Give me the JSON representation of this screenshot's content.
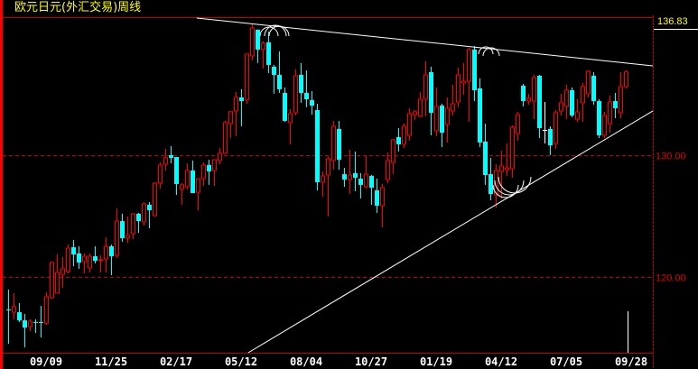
{
  "title": "欧元日元(外汇交易)周线",
  "last_price_label": "136.83",
  "colors": {
    "up": "#ff0000",
    "down": "#00ffff",
    "doji": "#ffffff",
    "grid": "#c00000",
    "title": "#ffff00",
    "trendline": "#ffffff",
    "axis_text": "#ffffff"
  },
  "chart_data": {
    "type": "candlestick",
    "title": "欧元日元(外汇交易)周线",
    "ylim": [
      113.78,
      141.33
    ],
    "y_ticks": [
      {
        "value": 130,
        "label": "130.00"
      },
      {
        "value": 120,
        "label": "120.00"
      }
    ],
    "grid": "horizontal dashed at y ticks",
    "x_ticks": [
      {
        "index": 7,
        "label": "09/09"
      },
      {
        "index": 19,
        "label": "11/25"
      },
      {
        "index": 31,
        "label": "02/17"
      },
      {
        "index": 43,
        "label": "05/12"
      },
      {
        "index": 55,
        "label": "08/04"
      },
      {
        "index": 67,
        "label": "10/27"
      },
      {
        "index": 79,
        "label": "01/19"
      },
      {
        "index": 91,
        "label": "04/12"
      },
      {
        "index": 103,
        "label": "07/05"
      },
      {
        "index": 115,
        "label": "09/28"
      }
    ],
    "last_price": 136.83,
    "ohlc": [
      [
        117.33,
        118.96,
        114.52,
        117.32
      ],
      [
        117.11,
        118.67,
        116.52,
        117.56
      ],
      [
        117.11,
        117.85,
        116.3,
        116.44
      ],
      [
        116.44,
        116.96,
        114.22,
        115.85
      ],
      [
        115.93,
        116.52,
        115.56,
        116.37
      ],
      [
        116.3,
        116.52,
        115.41,
        116.29
      ],
      [
        116.3,
        117.63,
        115.04,
        116.29
      ],
      [
        116.22,
        118.74,
        116.07,
        118.37
      ],
      [
        118.3,
        121.26,
        118.22,
        121.19
      ],
      [
        118.67,
        121.85,
        118.67,
        120.37
      ],
      [
        120.22,
        121.63,
        119.11,
        120.67
      ],
      [
        120.44,
        122.67,
        120.3,
        122.37
      ],
      [
        122.44,
        123.04,
        120.89,
        121.85
      ],
      [
        121.93,
        122.52,
        120.67,
        121.19
      ],
      [
        121.26,
        121.93,
        120.3,
        121.7
      ],
      [
        120.74,
        121.93,
        120.37,
        121.7
      ],
      [
        121.7,
        122.52,
        121.11,
        121.33
      ],
      [
        121.41,
        121.78,
        120.37,
        121.42
      ],
      [
        121.48,
        123.26,
        120.37,
        122.52
      ],
      [
        122.52,
        122.67,
        120.15,
        121.7
      ],
      [
        121.78,
        125.63,
        121.56,
        124.59
      ],
      [
        124.59,
        125.19,
        122.89,
        123.19
      ],
      [
        123.19,
        124.96,
        122.81,
        123.41
      ],
      [
        123.56,
        124.96,
        123.11,
        125.19
      ],
      [
        125.19,
        125.26,
        123.63,
        124.59
      ],
      [
        124.52,
        126.15,
        124.22,
        126.0
      ],
      [
        125.93,
        126.15,
        124.0,
        125.48
      ],
      [
        125.04,
        127.78,
        124.96,
        127.7
      ],
      [
        127.7,
        129.41,
        127.26,
        129.19
      ],
      [
        129.26,
        130.52,
        128.74,
        129.78
      ],
      [
        130.0,
        130.74,
        129.33,
        129.78
      ],
      [
        129.85,
        129.85,
        126.74,
        127.63
      ],
      [
        127.19,
        127.7,
        125.93,
        127.56
      ],
      [
        127.41,
        129.33,
        127.19,
        128.74
      ],
      [
        128.74,
        129.56,
        126.89,
        126.89
      ],
      [
        126.96,
        128.07,
        125.48,
        128.07
      ],
      [
        128.07,
        129.41,
        127.48,
        129.19
      ],
      [
        129.19,
        129.63,
        127.56,
        128.67
      ],
      [
        128.74,
        129.63,
        127.48,
        129.63
      ],
      [
        129.56,
        130.59,
        129.26,
        130.15
      ],
      [
        130.15,
        132.81,
        130.07,
        132.67
      ],
      [
        132.59,
        133.63,
        131.41,
        133.56
      ],
      [
        133.63,
        135.19,
        131.56,
        134.74
      ],
      [
        134.74,
        135.41,
        132.37,
        134.44
      ],
      [
        134.52,
        138.3,
        134.22,
        138.3
      ],
      [
        138.15,
        140.74,
        137.78,
        140.44
      ],
      [
        140.3,
        140.3,
        137.56,
        138.67
      ],
      [
        138.67,
        139.33,
        137.11,
        139.19
      ],
      [
        139.26,
        140.15,
        136.74,
        137.41
      ],
      [
        137.26,
        137.41,
        135.04,
        136.59
      ],
      [
        136.59,
        138.52,
        135.11,
        135.41
      ],
      [
        135.11,
        135.56,
        132.74,
        132.81
      ],
      [
        132.67,
        133.78,
        130.89,
        133.41
      ],
      [
        133.48,
        137.04,
        133.26,
        136.52
      ],
      [
        136.59,
        137.56,
        134.3,
        135.11
      ],
      [
        135.11,
        136.96,
        133.93,
        134.59
      ],
      [
        134.52,
        135.26,
        133.33,
        134.07
      ],
      [
        133.7,
        134.22,
        127.11,
        127.78
      ],
      [
        127.78,
        128.67,
        126.59,
        128.3
      ],
      [
        128.37,
        129.85,
        124.96,
        129.7
      ],
      [
        129.56,
        132.81,
        128.81,
        132.37
      ],
      [
        132.15,
        132.81,
        128.81,
        129.63
      ],
      [
        128.44,
        128.96,
        127.41,
        128.0
      ],
      [
        128.0,
        130.44,
        126.81,
        128.37
      ],
      [
        128.52,
        130.3,
        127.04,
        128.15
      ],
      [
        128.07,
        128.52,
        126.44,
        127.56
      ],
      [
        127.41,
        130.0,
        127.26,
        128.44
      ],
      [
        128.3,
        128.37,
        125.93,
        127.33
      ],
      [
        127.11,
        128.07,
        125.26,
        125.85
      ],
      [
        125.85,
        127.63,
        124.07,
        127.33
      ],
      [
        128.0,
        130.22,
        127.7,
        129.56
      ],
      [
        129.41,
        131.33,
        128.44,
        131.26
      ],
      [
        131.48,
        132.22,
        130.3,
        130.89
      ],
      [
        130.89,
        132.59,
        130.59,
        132.37
      ],
      [
        131.63,
        133.85,
        131.19,
        133.41
      ],
      [
        133.33,
        133.7,
        132.89,
        133.56
      ],
      [
        133.19,
        135.19,
        133.11,
        134.59
      ],
      [
        134.59,
        137.7,
        133.19,
        136.59
      ],
      [
        136.81,
        137.26,
        131.63,
        133.48
      ],
      [
        132.0,
        135.56,
        131.56,
        134.0
      ],
      [
        134.07,
        134.22,
        130.67,
        131.85
      ],
      [
        132.52,
        134.74,
        131.04,
        133.85
      ],
      [
        133.63,
        135.78,
        133.26,
        134.22
      ],
      [
        134.37,
        137.19,
        133.93,
        136.59
      ],
      [
        135.93,
        137.56,
        134.96,
        136.07
      ],
      [
        136.07,
        138.81,
        132.74,
        138.67
      ],
      [
        138.67,
        138.96,
        134.44,
        135.33
      ],
      [
        135.48,
        136.3,
        130.67,
        131.04
      ],
      [
        131.11,
        132.59,
        127.56,
        128.37
      ],
      [
        128.44,
        129.78,
        126.3,
        126.81
      ],
      [
        126.74,
        129.26,
        125.7,
        128.74
      ],
      [
        128.67,
        130.37,
        126.44,
        129.11
      ],
      [
        128.81,
        130.96,
        128.3,
        128.96
      ],
      [
        128.89,
        132.44,
        128.15,
        132.3
      ],
      [
        131.78,
        133.56,
        131.19,
        133.33
      ],
      [
        135.7,
        135.85,
        134.0,
        134.44
      ],
      [
        134.44,
        135.04,
        134.15,
        134.67
      ],
      [
        134.44,
        136.59,
        132.96,
        136.37
      ],
      [
        136.52,
        136.59,
        131.41,
        132.22
      ],
      [
        132.07,
        134.37,
        130.96,
        132.07
      ],
      [
        132.15,
        132.37,
        130.0,
        130.81
      ],
      [
        130.96,
        133.7,
        130.52,
        133.48
      ],
      [
        133.63,
        135.04,
        133.26,
        134.3
      ],
      [
        134.0,
        135.78,
        132.96,
        135.33
      ],
      [
        135.33,
        135.56,
        133.11,
        133.26
      ],
      [
        132.96,
        134.59,
        132.74,
        133.56
      ],
      [
        134.3,
        135.93,
        132.74,
        135.63
      ],
      [
        135.04,
        136.96,
        134.74,
        136.89
      ],
      [
        136.52,
        136.81,
        134.15,
        134.44
      ],
      [
        134.44,
        134.59,
        131.41,
        131.63
      ],
      [
        131.63,
        133.56,
        131.41,
        133.26
      ],
      [
        132.59,
        134.89,
        131.85,
        134.37
      ],
      [
        134.44,
        135.11,
        133.04,
        133.85
      ],
      [
        133.48,
        136.81,
        133.04,
        135.63
      ],
      [
        135.63,
        136.96,
        135.48,
        136.83
      ]
    ],
    "trendlines": [
      {
        "from": {
          "index": 34.8,
          "price": 141.26
        },
        "to": {
          "index": 119,
          "price": 137.33
        }
      },
      {
        "from": {
          "index": 44.3,
          "price": 113.78
        },
        "to": {
          "index": 119,
          "price": 133.63
        }
      }
    ]
  }
}
